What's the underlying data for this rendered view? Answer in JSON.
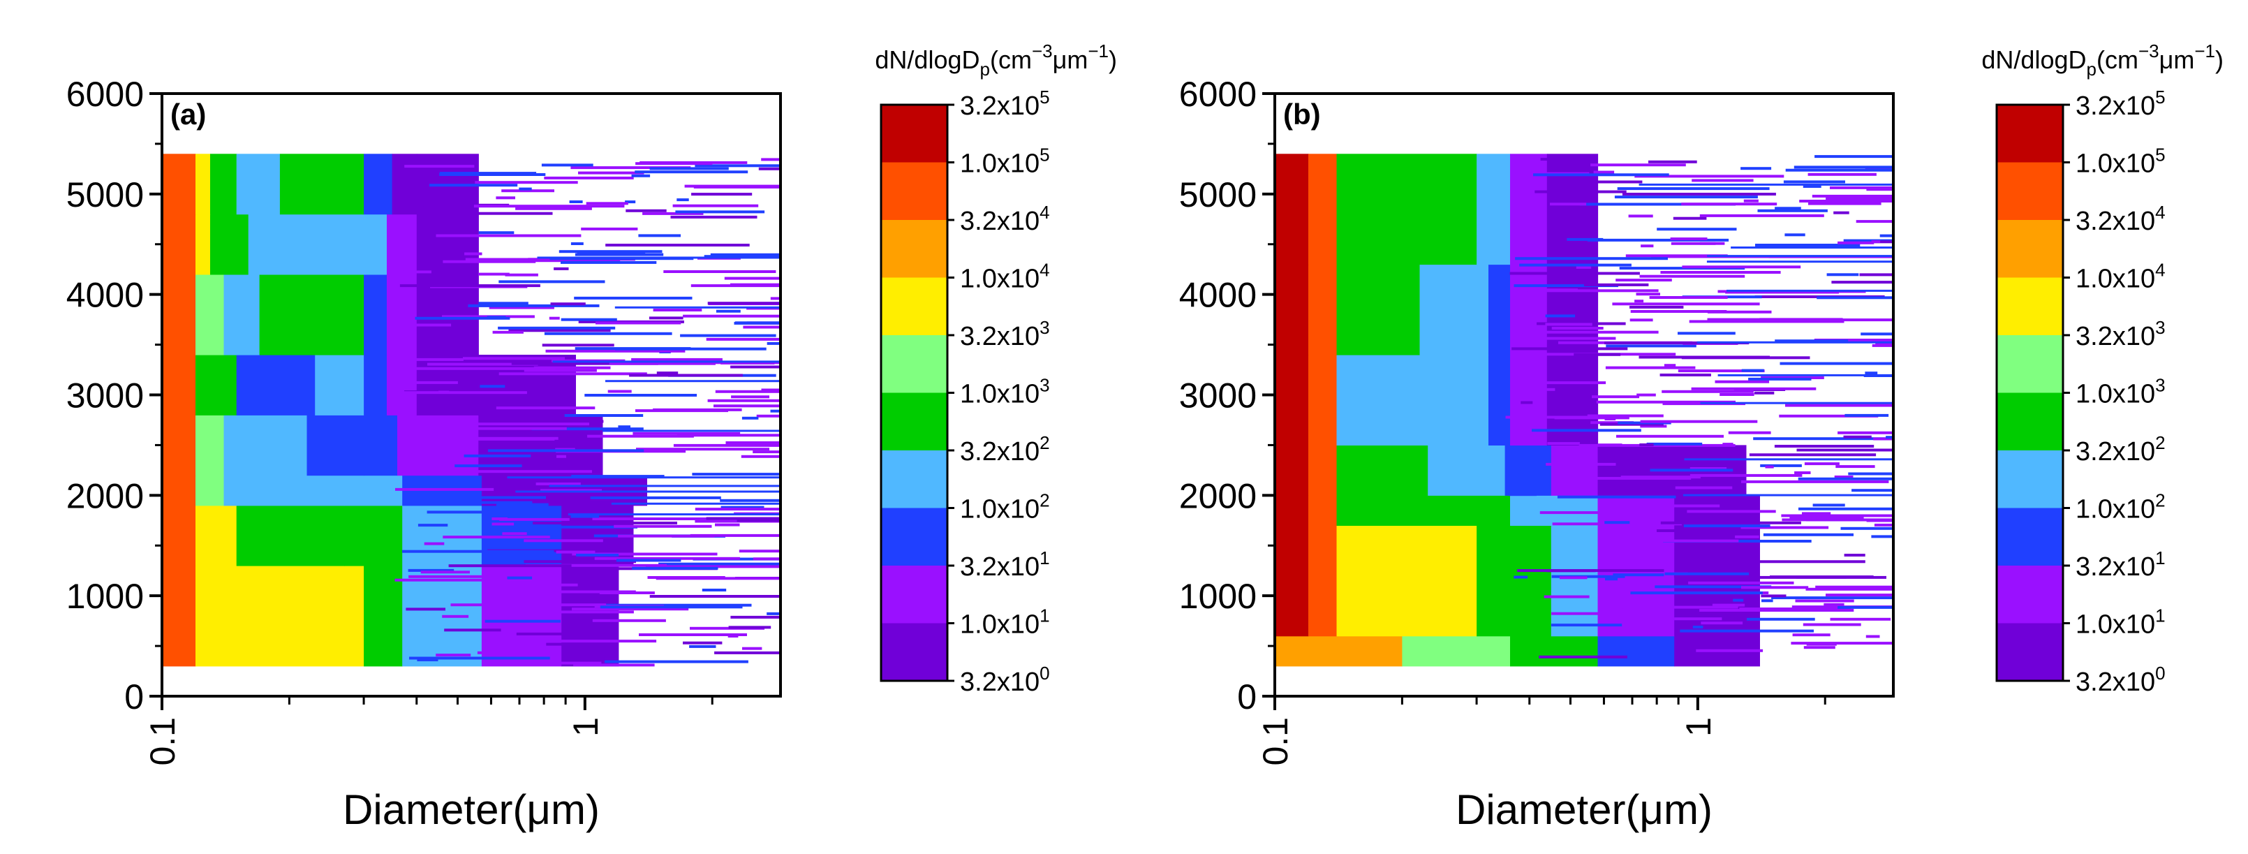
{
  "chart_data": [
    {
      "type": "heatmap",
      "panel_label": "(a)",
      "xlabel": "Diameter(μm)",
      "ylabel": "",
      "xscale": "log",
      "xlim": [
        0.1,
        2.9
      ],
      "ylim": [
        0,
        6000
      ],
      "x_tick_labels": [
        "0.1",
        "1"
      ],
      "y_tick_labels": [
        "0",
        "1000",
        "2000",
        "3000",
        "4000",
        "5000",
        "6000"
      ],
      "data_y_range": [
        300,
        5400
      ],
      "colorbar": {
        "title": "dN/dlogD",
        "title_sub": "p",
        "title_units": "(cm",
        "title_exp1": "−3",
        "title_mid": "μm",
        "title_exp2": "−1",
        "title_end": ")",
        "labels": [
          {
            "mant": "3.2x10",
            "exp": "5"
          },
          {
            "mant": "1.0x10",
            "exp": "5"
          },
          {
            "mant": "3.2x10",
            "exp": "4"
          },
          {
            "mant": "1.0x10",
            "exp": "4"
          },
          {
            "mant": "3.2x10",
            "exp": "3"
          },
          {
            "mant": "1.0x10",
            "exp": "3"
          },
          {
            "mant": "3.2x10",
            "exp": "2"
          },
          {
            "mant": "1.0x10",
            "exp": "2"
          },
          {
            "mant": "3.2x10",
            "exp": "1"
          },
          {
            "mant": "1.0x10",
            "exp": "1"
          },
          {
            "mant": "3.2x10",
            "exp": "0"
          }
        ]
      },
      "layers": [
        {
          "y0": 300,
          "y1": 1300,
          "bins": [
            {
              "x0": 0.1,
              "x1": 0.12,
              "level": 8
            },
            {
              "x0": 0.12,
              "x1": 0.17,
              "level": 6
            },
            {
              "x0": 0.17,
              "x1": 0.3,
              "level": 6
            },
            {
              "x0": 0.3,
              "x1": 0.37,
              "level": 4
            },
            {
              "x0": 0.37,
              "x1": 0.57,
              "level": 3
            },
            {
              "x0": 0.57,
              "x1": 0.88,
              "level": 1
            },
            {
              "x0": 0.88,
              "x1": 1.2,
              "level": 0
            }
          ]
        },
        {
          "y0": 1300,
          "y1": 1900,
          "bins": [
            {
              "x0": 0.1,
              "x1": 0.12,
              "level": 8
            },
            {
              "x0": 0.12,
              "x1": 0.15,
              "level": 6
            },
            {
              "x0": 0.15,
              "x1": 0.27,
              "level": 4
            },
            {
              "x0": 0.27,
              "x1": 0.37,
              "level": 4
            },
            {
              "x0": 0.37,
              "x1": 0.57,
              "level": 3
            },
            {
              "x0": 0.57,
              "x1": 0.88,
              "level": 2
            },
            {
              "x0": 0.88,
              "x1": 1.3,
              "level": 0
            }
          ]
        },
        {
          "y0": 1900,
          "y1": 2200,
          "bins": [
            {
              "x0": 0.1,
              "x1": 0.12,
              "level": 8
            },
            {
              "x0": 0.12,
              "x1": 0.14,
              "level": 5
            },
            {
              "x0": 0.14,
              "x1": 0.27,
              "level": 3
            },
            {
              "x0": 0.27,
              "x1": 0.37,
              "level": 3
            },
            {
              "x0": 0.37,
              "x1": 0.57,
              "level": 2
            },
            {
              "x0": 0.57,
              "x1": 0.88,
              "level": 0
            },
            {
              "x0": 0.88,
              "x1": 1.4,
              "level": 0
            }
          ]
        },
        {
          "y0": 2200,
          "y1": 2800,
          "bins": [
            {
              "x0": 0.1,
              "x1": 0.12,
              "level": 8
            },
            {
              "x0": 0.12,
              "x1": 0.14,
              "level": 5
            },
            {
              "x0": 0.14,
              "x1": 0.22,
              "level": 3
            },
            {
              "x0": 0.22,
              "x1": 0.3,
              "level": 2
            },
            {
              "x0": 0.3,
              "x1": 0.36,
              "level": 2
            },
            {
              "x0": 0.36,
              "x1": 0.56,
              "level": 1
            },
            {
              "x0": 0.56,
              "x1": 1.1,
              "level": 0
            }
          ]
        },
        {
          "y0": 2800,
          "y1": 3400,
          "bins": [
            {
              "x0": 0.1,
              "x1": 0.12,
              "level": 8
            },
            {
              "x0": 0.12,
              "x1": 0.15,
              "level": 4
            },
            {
              "x0": 0.15,
              "x1": 0.23,
              "level": 2
            },
            {
              "x0": 0.23,
              "x1": 0.3,
              "level": 3
            },
            {
              "x0": 0.3,
              "x1": 0.34,
              "level": 2
            },
            {
              "x0": 0.34,
              "x1": 0.4,
              "level": 1
            },
            {
              "x0": 0.4,
              "x1": 0.56,
              "level": 0
            },
            {
              "x0": 0.56,
              "x1": 0.95,
              "level": 0
            }
          ]
        },
        {
          "y0": 3400,
          "y1": 4200,
          "bins": [
            {
              "x0": 0.1,
              "x1": 0.12,
              "level": 8
            },
            {
              "x0": 0.12,
              "x1": 0.14,
              "level": 5
            },
            {
              "x0": 0.14,
              "x1": 0.17,
              "level": 3
            },
            {
              "x0": 0.17,
              "x1": 0.3,
              "level": 4
            },
            {
              "x0": 0.3,
              "x1": 0.34,
              "level": 2
            },
            {
              "x0": 0.34,
              "x1": 0.4,
              "level": 1
            },
            {
              "x0": 0.4,
              "x1": 0.56,
              "level": 0
            }
          ]
        },
        {
          "y0": 4200,
          "y1": 4800,
          "bins": [
            {
              "x0": 0.1,
              "x1": 0.12,
              "level": 8
            },
            {
              "x0": 0.12,
              "x1": 0.13,
              "level": 6
            },
            {
              "x0": 0.13,
              "x1": 0.16,
              "level": 4
            },
            {
              "x0": 0.16,
              "x1": 0.26,
              "level": 3
            },
            {
              "x0": 0.26,
              "x1": 0.34,
              "level": 3
            },
            {
              "x0": 0.34,
              "x1": 0.4,
              "level": 1
            },
            {
              "x0": 0.4,
              "x1": 0.56,
              "level": 0
            }
          ]
        },
        {
          "y0": 4800,
          "y1": 5400,
          "bins": [
            {
              "x0": 0.1,
              "x1": 0.12,
              "level": 8
            },
            {
              "x0": 0.12,
              "x1": 0.13,
              "level": 6
            },
            {
              "x0": 0.13,
              "x1": 0.15,
              "level": 4
            },
            {
              "x0": 0.15,
              "x1": 0.19,
              "level": 3
            },
            {
              "x0": 0.19,
              "x1": 0.3,
              "level": 4
            },
            {
              "x0": 0.3,
              "x1": 0.35,
              "level": 2
            },
            {
              "x0": 0.35,
              "x1": 0.4,
              "level": 0
            },
            {
              "x0": 0.4,
              "x1": 0.56,
              "level": 0
            }
          ]
        }
      ]
    },
    {
      "type": "heatmap",
      "panel_label": "(b)",
      "xlabel": "Diameter(μm)",
      "ylabel": "",
      "xscale": "log",
      "xlim": [
        0.1,
        2.9
      ],
      "ylim": [
        0,
        6000
      ],
      "x_tick_labels": [
        "0.1",
        "1"
      ],
      "y_tick_labels": [
        "0",
        "1000",
        "2000",
        "3000",
        "4000",
        "5000",
        "6000"
      ],
      "data_y_range": [
        300,
        5400
      ],
      "colorbar": {
        "title": "dN/dlogD",
        "title_sub": "p",
        "title_units": "(cm",
        "title_exp1": "−3",
        "title_mid": "μm",
        "title_exp2": "−1",
        "title_end": ")",
        "labels": [
          {
            "mant": "3.2x10",
            "exp": "5"
          },
          {
            "mant": "1.0x10",
            "exp": "5"
          },
          {
            "mant": "3.2x10",
            "exp": "4"
          },
          {
            "mant": "1.0x10",
            "exp": "4"
          },
          {
            "mant": "3.2x10",
            "exp": "3"
          },
          {
            "mant": "1.0x10",
            "exp": "3"
          },
          {
            "mant": "3.2x10",
            "exp": "2"
          },
          {
            "mant": "1.0x10",
            "exp": "2"
          },
          {
            "mant": "3.2x10",
            "exp": "1"
          },
          {
            "mant": "1.0x10",
            "exp": "1"
          },
          {
            "mant": "3.2x10",
            "exp": "0"
          }
        ]
      },
      "layers": [
        {
          "y0": 300,
          "y1": 600,
          "bins": [
            {
              "x0": 0.1,
              "x1": 0.2,
              "level": 7
            },
            {
              "x0": 0.2,
              "x1": 0.36,
              "level": 5
            },
            {
              "x0": 0.36,
              "x1": 0.58,
              "level": 4
            },
            {
              "x0": 0.58,
              "x1": 0.88,
              "level": 2
            },
            {
              "x0": 0.88,
              "x1": 1.4,
              "level": 0
            }
          ]
        },
        {
          "y0": 600,
          "y1": 1700,
          "bins": [
            {
              "x0": 0.1,
              "x1": 0.12,
              "level": 9
            },
            {
              "x0": 0.12,
              "x1": 0.14,
              "level": 8
            },
            {
              "x0": 0.14,
              "x1": 0.3,
              "level": 6
            },
            {
              "x0": 0.3,
              "x1": 0.36,
              "level": 4
            },
            {
              "x0": 0.36,
              "x1": 0.45,
              "level": 4
            },
            {
              "x0": 0.45,
              "x1": 0.58,
              "level": 3
            },
            {
              "x0": 0.58,
              "x1": 0.88,
              "level": 1
            },
            {
              "x0": 0.88,
              "x1": 1.4,
              "level": 0
            }
          ]
        },
        {
          "y0": 1700,
          "y1": 2000,
          "bins": [
            {
              "x0": 0.1,
              "x1": 0.12,
              "level": 9
            },
            {
              "x0": 0.12,
              "x1": 0.14,
              "level": 8
            },
            {
              "x0": 0.14,
              "x1": 0.2,
              "level": 4
            },
            {
              "x0": 0.2,
              "x1": 0.36,
              "level": 4
            },
            {
              "x0": 0.36,
              "x1": 0.58,
              "level": 3
            },
            {
              "x0": 0.58,
              "x1": 0.88,
              "level": 1
            },
            {
              "x0": 0.88,
              "x1": 1.4,
              "level": 0
            }
          ]
        },
        {
          "y0": 2000,
          "y1": 2500,
          "bins": [
            {
              "x0": 0.1,
              "x1": 0.12,
              "level": 9
            },
            {
              "x0": 0.12,
              "x1": 0.14,
              "level": 8
            },
            {
              "x0": 0.14,
              "x1": 0.23,
              "level": 4
            },
            {
              "x0": 0.23,
              "x1": 0.35,
              "level": 3
            },
            {
              "x0": 0.35,
              "x1": 0.45,
              "level": 2
            },
            {
              "x0": 0.45,
              "x1": 0.58,
              "level": 1
            },
            {
              "x0": 0.58,
              "x1": 1.3,
              "level": 0
            }
          ]
        },
        {
          "y0": 2500,
          "y1": 3400,
          "bins": [
            {
              "x0": 0.1,
              "x1": 0.12,
              "level": 9
            },
            {
              "x0": 0.12,
              "x1": 0.14,
              "level": 8
            },
            {
              "x0": 0.14,
              "x1": 0.25,
              "level": 3
            },
            {
              "x0": 0.25,
              "x1": 0.32,
              "level": 3
            },
            {
              "x0": 0.32,
              "x1": 0.36,
              "level": 2
            },
            {
              "x0": 0.36,
              "x1": 0.44,
              "level": 1
            },
            {
              "x0": 0.44,
              "x1": 0.58,
              "level": 0
            }
          ]
        },
        {
          "y0": 3400,
          "y1": 4300,
          "bins": [
            {
              "x0": 0.1,
              "x1": 0.12,
              "level": 9
            },
            {
              "x0": 0.12,
              "x1": 0.14,
              "level": 8
            },
            {
              "x0": 0.14,
              "x1": 0.22,
              "level": 4
            },
            {
              "x0": 0.22,
              "x1": 0.32,
              "level": 3
            },
            {
              "x0": 0.32,
              "x1": 0.36,
              "level": 2
            },
            {
              "x0": 0.36,
              "x1": 0.44,
              "level": 1
            },
            {
              "x0": 0.44,
              "x1": 0.58,
              "level": 0
            }
          ]
        },
        {
          "y0": 4300,
          "y1": 5400,
          "bins": [
            {
              "x0": 0.1,
              "x1": 0.12,
              "level": 9
            },
            {
              "x0": 0.12,
              "x1": 0.14,
              "level": 8
            },
            {
              "x0": 0.14,
              "x1": 0.3,
              "level": 4
            },
            {
              "x0": 0.3,
              "x1": 0.36,
              "level": 3
            },
            {
              "x0": 0.36,
              "x1": 0.44,
              "level": 1
            },
            {
              "x0": 0.44,
              "x1": 0.58,
              "level": 0
            }
          ]
        }
      ]
    }
  ],
  "colorscale": [
    "#7000d8",
    "#9a10ff",
    "#2040ff",
    "#50b8ff",
    "#00cc00",
    "#80ff80",
    "#ffee00",
    "#ffa000",
    "#ff5000",
    "#c00000"
  ]
}
